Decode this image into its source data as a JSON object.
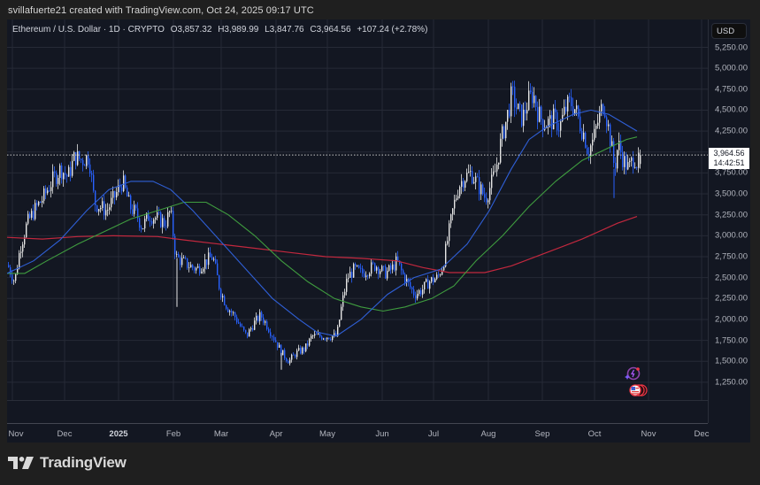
{
  "header": {
    "attribution": "svillafuerte21 created with TradingView.com, Oct 24, 2025 09:17 UTC"
  },
  "legend": {
    "symbol": "Ethereum / U.S. Dollar · 1D · CRYPTO",
    "open": "O3,857.32",
    "high": "H3,989.99",
    "low": "L3,847.76",
    "close": "C3,964.56",
    "change": "+107.24 (+2.78%)"
  },
  "price_axis": {
    "currency_button": "USD",
    "labels": [
      "5,250.00",
      "5,000.00",
      "4,750.00",
      "4,500.00",
      "4,250.00",
      "3,750.00",
      "3,500.00",
      "3,250.00",
      "3,000.00",
      "2,750.00",
      "2,500.00",
      "2,250.00",
      "2,000.00",
      "1,750.00",
      "1,500.00",
      "1,250.00"
    ],
    "last_price": "3,964.56",
    "countdown": "14:42:51"
  },
  "time_axis": {
    "labels": [
      "Nov",
      "Dec",
      "2025",
      "Feb",
      "Mar",
      "Apr",
      "May",
      "Jun",
      "Jul",
      "Aug",
      "Sep",
      "Oct",
      "Nov",
      "Dec"
    ]
  },
  "footer": {
    "brand": "TradingView"
  },
  "colors": {
    "background": "#131722",
    "up_candle": "#e6e6e6",
    "down_candle": "#2962ff",
    "ma_fast": "#2f5fd6",
    "ma_mid": "#3f9c3f",
    "ma_slow": "#c2283e",
    "grid": "#262a36"
  },
  "chart_data": {
    "type": "candlestick",
    "title": "Ethereum / U.S. Dollar · 1D · CRYPTO",
    "xlabel": "",
    "ylabel": "USD",
    "ylim": [
      1100,
      5400
    ],
    "grid": true,
    "last": {
      "open": 3857.32,
      "high": 3989.99,
      "low": 3847.76,
      "close": 3964.56,
      "change": 107.24,
      "change_pct": 2.78
    },
    "x": [
      "2024-11",
      "2024-12",
      "2025-01",
      "2025-02",
      "2025-03",
      "2025-04",
      "2025-05",
      "2025-06",
      "2025-07",
      "2025-08",
      "2025-09",
      "2025-10"
    ],
    "series": [
      {
        "name": "ETH close (approx. monthly path)",
        "values": [
          2600,
          3700,
          3300,
          3300,
          2200,
          1800,
          1800,
          2500,
          2500,
          4300,
          4400,
          3960
        ]
      },
      {
        "name": "MA fast (blue)",
        "values": [
          2550,
          2900,
          3550,
          3300,
          2600,
          2000,
          1800,
          2300,
          2600,
          3400,
          4300,
          4250
        ]
      },
      {
        "name": "MA mid (green)",
        "values": [
          2550,
          2800,
          3200,
          3400,
          3000,
          2500,
          2150,
          2100,
          2300,
          2800,
          3600,
          4150
        ]
      },
      {
        "name": "MA slow (red)",
        "values": [
          2950,
          2980,
          3000,
          2990,
          2900,
          2800,
          2700,
          2650,
          2560,
          2600,
          2850,
          3230
        ]
      }
    ]
  }
}
